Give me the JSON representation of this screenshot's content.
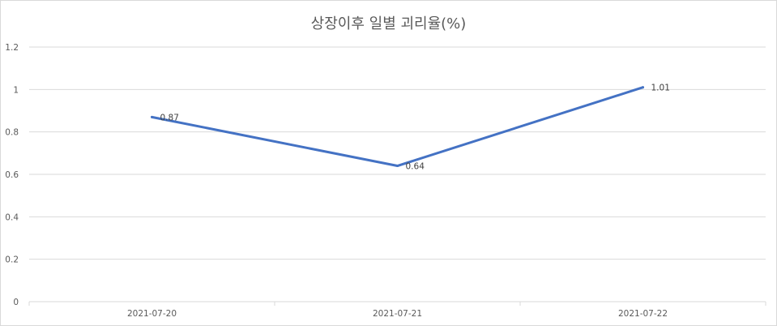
{
  "chart_data": {
    "type": "line",
    "title": "상장이후 일별 괴리율(%)",
    "xlabel": "",
    "ylabel": "",
    "categories": [
      "2021-07-20",
      "2021-07-21",
      "2021-07-22"
    ],
    "series": [
      {
        "values": [
          0.87,
          0.64,
          1.01
        ]
      }
    ],
    "data_labels": [
      "0.87",
      "0.64",
      "1.01"
    ],
    "ylim": [
      0,
      1.2
    ],
    "yticks": [
      "0",
      "0.2",
      "0.4",
      "0.6",
      "0.8",
      "1",
      "1.2"
    ],
    "grid": true,
    "legend": "none",
    "line_color": "#4472c4",
    "grid_color": "#d9d9d9"
  }
}
